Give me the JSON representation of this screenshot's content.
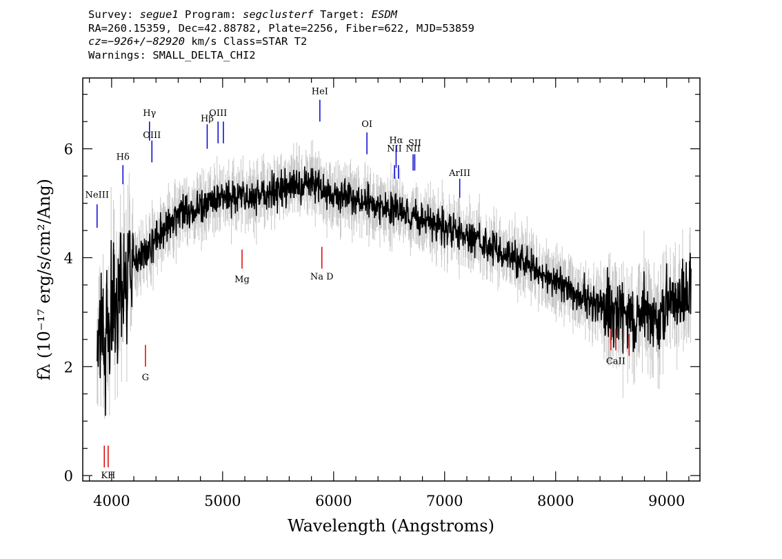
{
  "header": {
    "line1": {
      "survey_label": "Survey:",
      "survey": "segue1",
      "program_label": "Program:",
      "program": "segclusterf",
      "target_label": "Target:",
      "target": "ESDM"
    },
    "line2": "RA=260.15359, Dec=42.88782, Plate=2256, Fiber=622, MJD=53859",
    "line3": {
      "cz": "cz=−926+/−82920",
      "rest": " km/s Class=STAR T2"
    },
    "line4": "Warnings: SMALL_DELTA_CHI2"
  },
  "chart_data": {
    "type": "line",
    "xlabel": "Wavelength (Angstroms)",
    "ylabel": "fλ (10⁻¹⁷ erg/s/cm²/Ang)",
    "xlim": [
      3740,
      9300
    ],
    "ylim": [
      -0.1,
      7.3
    ],
    "xticks": [
      4000,
      5000,
      6000,
      7000,
      8000,
      9000
    ],
    "yticks": [
      0,
      2,
      4,
      6
    ],
    "colors": {
      "spectrum": "#000000",
      "error": "#c8c8c8",
      "emission": "#0000cc",
      "absorption": "#dd0000"
    },
    "spectrum_knots": [
      [
        3870,
        2.7
      ],
      [
        3920,
        2.9
      ],
      [
        3950,
        2.4
      ],
      [
        4000,
        3.2
      ],
      [
        4050,
        3.4
      ],
      [
        4100,
        3.6
      ],
      [
        4200,
        3.9
      ],
      [
        4300,
        4.1
      ],
      [
        4400,
        4.4
      ],
      [
        4500,
        4.6
      ],
      [
        4600,
        4.8
      ],
      [
        4700,
        4.85
      ],
      [
        4800,
        4.95
      ],
      [
        4900,
        5.05
      ],
      [
        5000,
        5.1
      ],
      [
        5100,
        5.15
      ],
      [
        5200,
        5.1
      ],
      [
        5300,
        5.15
      ],
      [
        5400,
        5.2
      ],
      [
        5500,
        5.25
      ],
      [
        5600,
        5.3
      ],
      [
        5700,
        5.35
      ],
      [
        5800,
        5.4
      ],
      [
        5900,
        5.3
      ],
      [
        6000,
        5.15
      ],
      [
        6100,
        5.15
      ],
      [
        6200,
        5.1
      ],
      [
        6300,
        5.05
      ],
      [
        6400,
        4.95
      ],
      [
        6500,
        4.9
      ],
      [
        6600,
        4.85
      ],
      [
        6700,
        4.75
      ],
      [
        6800,
        4.7
      ],
      [
        6900,
        4.65
      ],
      [
        7000,
        4.55
      ],
      [
        7100,
        4.45
      ],
      [
        7200,
        4.4
      ],
      [
        7300,
        4.3
      ],
      [
        7400,
        4.2
      ],
      [
        7500,
        4.1
      ],
      [
        7600,
        4.0
      ],
      [
        7700,
        3.9
      ],
      [
        7800,
        3.8
      ],
      [
        7900,
        3.65
      ],
      [
        8000,
        3.55
      ],
      [
        8100,
        3.45
      ],
      [
        8200,
        3.35
      ],
      [
        8300,
        3.25
      ],
      [
        8400,
        3.1
      ],
      [
        8500,
        3.05
      ],
      [
        8600,
        3.0
      ],
      [
        8700,
        2.95
      ],
      [
        8800,
        3.0
      ],
      [
        8900,
        2.95
      ],
      [
        9000,
        3.1
      ],
      [
        9100,
        3.2
      ],
      [
        9200,
        3.4
      ]
    ],
    "emission_lines": [
      {
        "label": "NeIII",
        "wave": 3869,
        "y1": 4.55,
        "y2": 4.98,
        "label_y": 5.1
      },
      {
        "label": "Hδ",
        "wave": 4102,
        "y1": 5.35,
        "y2": 5.7,
        "label_y": 5.8
      },
      {
        "label": "Hγ",
        "wave": 4341,
        "y1": 6.15,
        "y2": 6.5,
        "label_y": 6.6
      },
      {
        "label": "OIII",
        "wave": 4363,
        "y1": 5.75,
        "y2": 6.15,
        "label_y": 6.2
      },
      {
        "label": "Hβ",
        "wave": 4861,
        "y1": 6.0,
        "y2": 6.45,
        "label_y": 6.5
      },
      {
        "label": "OIII",
        "wave": 4959,
        "y1": 6.1,
        "y2": 6.5,
        "label_y": 6.6
      },
      {
        "label": "",
        "wave": 5007,
        "y1": 6.1,
        "y2": 6.5
      },
      {
        "label": "HeI",
        "wave": 5876,
        "y1": 6.5,
        "y2": 6.9,
        "label_y": 7.0
      },
      {
        "label": "OI",
        "wave": 6300,
        "y1": 5.9,
        "y2": 6.3,
        "label_y": 6.4
      },
      {
        "label": "NII",
        "wave": 6548,
        "y1": 5.45,
        "y2": 5.7,
        "label_y": 5.95
      },
      {
        "label": "Hα",
        "wave": 6563,
        "y1": 5.65,
        "y2": 6.05,
        "label_y": 6.1
      },
      {
        "label": "",
        "wave": 6584,
        "y1": 5.45,
        "y2": 5.7
      },
      {
        "label": "NII",
        "wave": 6716,
        "y1": 5.6,
        "y2": 5.9,
        "label_y": 5.95
      },
      {
        "label": "SII",
        "wave": 6731,
        "y1": 5.6,
        "y2": 5.9,
        "label_y": 6.05
      },
      {
        "label": "ArIII",
        "wave": 7136,
        "y1": 5.1,
        "y2": 5.45,
        "label_y": 5.5
      }
    ],
    "absorption_lines": [
      {
        "label": "",
        "wave": 3934,
        "y1": 0.15,
        "y2": 0.55
      },
      {
        "label": "KH",
        "wave": 3969,
        "y1": 0.15,
        "y2": 0.55,
        "label_y": -0.05
      },
      {
        "label": "G",
        "wave": 4305,
        "y1": 2.0,
        "y2": 2.4,
        "label_y": 1.75
      },
      {
        "label": "Mg",
        "wave": 5175,
        "y1": 3.8,
        "y2": 4.15,
        "label_y": 3.55
      },
      {
        "label": "Na D",
        "wave": 5894,
        "y1": 3.8,
        "y2": 4.2,
        "label_y": 3.6
      },
      {
        "label": "",
        "wave": 8498,
        "y1": 2.3,
        "y2": 2.7
      },
      {
        "label": "CaII",
        "wave": 8542,
        "y1": 2.3,
        "y2": 2.7,
        "label_y": 2.05
      },
      {
        "label": "",
        "wave": 8662,
        "y1": 2.2,
        "y2": 2.6
      }
    ]
  }
}
